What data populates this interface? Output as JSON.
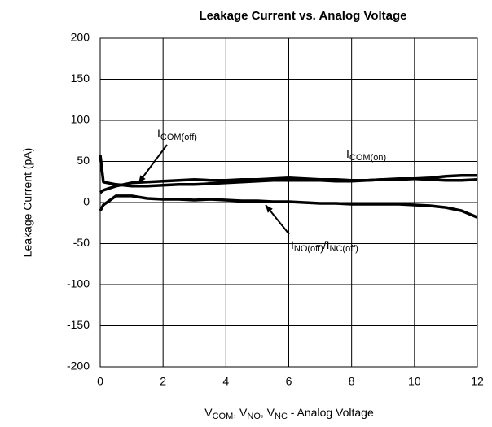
{
  "chart_data": {
    "type": "line",
    "title": "Leakage Current vs. Analog Voltage",
    "y_label": "Leakage Current (pA)",
    "x_label": [
      "V",
      "COM",
      ", V",
      "NO",
      ", V",
      "NC",
      " -  Analog Voltage"
    ],
    "annotations": [
      [
        "I",
        "COM(off)"
      ],
      [
        "I",
        "COM(on)"
      ],
      [
        "I",
        "NO(off)",
        "/I",
        "NC(off)"
      ]
    ],
    "x": [
      0,
      0.1,
      0.5,
      1,
      1.5,
      2,
      2.5,
      3,
      3.5,
      4,
      4.5,
      5,
      5.5,
      6,
      6.5,
      7,
      7.5,
      8,
      8.5,
      9,
      9.5,
      10,
      10.5,
      11,
      11.5,
      12
    ],
    "series": [
      {
        "color": "#000000",
        "values": [
          58,
          25,
          22,
          20,
          20,
          21,
          22,
          22,
          23,
          24,
          25,
          26,
          27,
          27,
          27,
          27,
          26,
          26,
          27,
          28,
          28,
          29,
          30,
          32,
          33,
          33
        ]
      },
      {
        "color": "#000000",
        "values": [
          12,
          15,
          20,
          24,
          25,
          26,
          27,
          28,
          27,
          27,
          28,
          28,
          29,
          30,
          29,
          28,
          28,
          27,
          27,
          28,
          29,
          29,
          28,
          27,
          27,
          28
        ]
      },
      {
        "color": "#000000",
        "values": [
          -10,
          -3,
          8,
          8,
          5,
          4,
          4,
          3,
          4,
          3,
          2,
          2,
          1,
          1,
          0,
          -1,
          -1,
          -2,
          -2,
          -2,
          -2,
          -3,
          -4,
          -6,
          -10,
          -18
        ]
      }
    ],
    "xlim": [
      0,
      12
    ],
    "xticks": [
      0,
      2,
      4,
      6,
      8,
      10,
      12
    ],
    "ylim": [
      -200,
      200
    ],
    "yticks": [
      -200,
      -150,
      -100,
      -50,
      0,
      50,
      100,
      150,
      200
    ],
    "grid": true
  }
}
